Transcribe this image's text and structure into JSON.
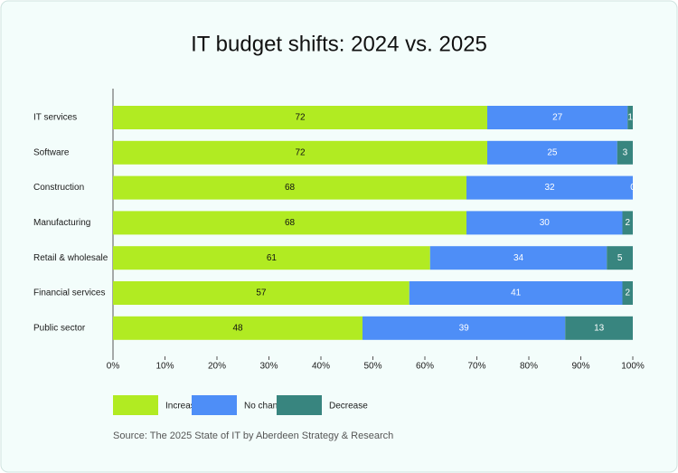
{
  "chart_data": {
    "type": "stacked-bar-horizontal",
    "title": "IT budget shifts: 2024 vs. 2025",
    "categories": [
      "IT services",
      "Software",
      "Construction",
      "Manufacturing",
      "Retail & wholesale",
      "Financial services",
      "Public sector"
    ],
    "series": [
      {
        "name": "Increase",
        "color": "#b1eb22",
        "values": [
          72,
          72,
          68,
          68,
          61,
          57,
          48
        ]
      },
      {
        "name": "No change",
        "color": "#4e8ef7",
        "values": [
          27,
          25,
          32,
          30,
          34,
          41,
          39
        ]
      },
      {
        "name": "Decrease",
        "color": "#38857f",
        "values": [
          1,
          3,
          0,
          2,
          5,
          2,
          13
        ]
      }
    ],
    "xlim": [
      0,
      100
    ],
    "xticks": [
      {
        "value": 0,
        "label": "0%"
      },
      {
        "value": 10,
        "label": "10%"
      },
      {
        "value": 20,
        "label": "20%"
      },
      {
        "value": 30,
        "label": "30%"
      },
      {
        "value": 40,
        "label": "40%"
      },
      {
        "value": 50,
        "label": "50%"
      },
      {
        "value": 60,
        "label": "60%"
      },
      {
        "value": 70,
        "label": "70%"
      },
      {
        "value": 80,
        "label": "80%"
      },
      {
        "value": 90,
        "label": "90%"
      },
      {
        "value": 100,
        "label": "100%"
      }
    ],
    "legend": "bottom-left",
    "source": "Source: The 2025 State of IT by Aberdeen Strategy & Research"
  }
}
